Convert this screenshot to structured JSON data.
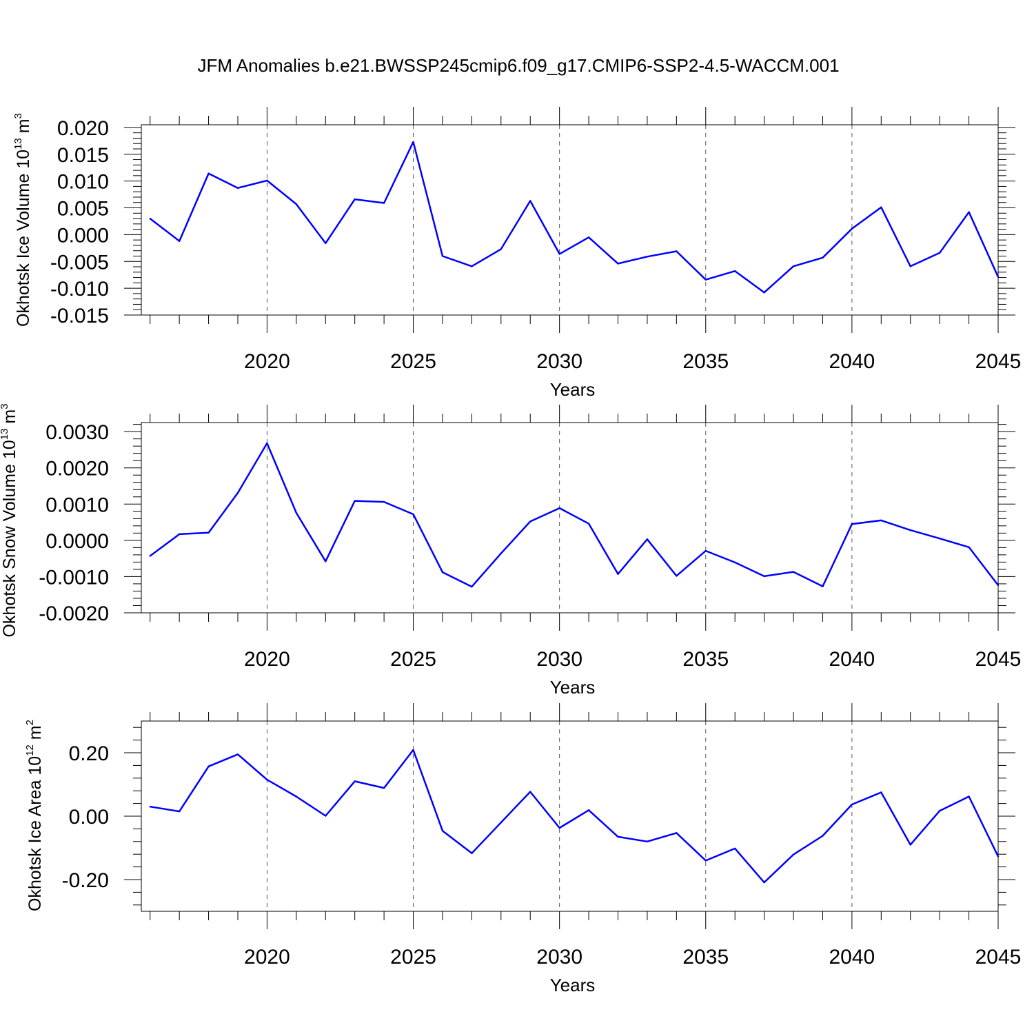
{
  "chart_data": {
    "title": "JFM Anomalies b.e21.BWSSP245cmip6.f09_g17.CMIP6-SSP2-4.5-WACCM.001",
    "color": "#0000ff",
    "panels": [
      {
        "type": "line",
        "ylabel": "Okhotsk Ice Volume 10",
        "ylabel_exp": "13",
        "ylabel_unit": " m",
        "ylabel_unit_exp": "3",
        "xlabel": "Years",
        "xlim": [
          2015.7,
          2045
        ],
        "ylim": [
          -0.015,
          0.0205
        ],
        "yticks": [
          -0.015,
          -0.01,
          -0.005,
          0.0,
          0.005,
          0.01,
          0.015,
          0.02
        ],
        "ytick_labels": [
          "-0.015",
          "-0.010",
          "-0.005",
          "0.000",
          "0.005",
          "0.010",
          "0.015",
          "0.020"
        ],
        "xticks": [
          2020,
          2025,
          2030,
          2035,
          2040,
          2045
        ],
        "xtick_labels": [
          "2020",
          "2025",
          "2030",
          "2035",
          "2040",
          "2045"
        ],
        "x": [
          2016,
          2017,
          2018,
          2019,
          2020,
          2021,
          2022,
          2023,
          2024,
          2025,
          2026,
          2027,
          2028,
          2029,
          2030,
          2031,
          2032,
          2033,
          2034,
          2035,
          2036,
          2037,
          2038,
          2039,
          2040,
          2041,
          2042,
          2043,
          2044,
          2045
        ],
        "y": [
          0.003,
          -0.0012,
          0.0114,
          0.0087,
          0.0101,
          0.0057,
          -0.0016,
          0.0066,
          0.0059,
          0.0173,
          -0.004,
          -0.0059,
          -0.0027,
          0.0063,
          -0.0036,
          -0.0005,
          -0.0054,
          -0.0041,
          -0.0031,
          -0.0084,
          -0.0068,
          -0.0108,
          -0.0059,
          -0.0043,
          0.0011,
          0.0051,
          -0.0059,
          -0.0034,
          0.0042,
          -0.0079
        ]
      },
      {
        "type": "line",
        "ylabel": "Okhotsk Snow Volume 10",
        "ylabel_exp": "13",
        "ylabel_unit": " m",
        "ylabel_unit_exp": "3",
        "xlabel": "Years",
        "xlim": [
          2015.7,
          2045
        ],
        "ylim": [
          -0.002,
          0.00325
        ],
        "yticks": [
          -0.002,
          -0.001,
          0.0,
          0.001,
          0.002,
          0.003
        ],
        "ytick_labels": [
          "-0.0020",
          "-0.0010",
          "0.0000",
          "0.0010",
          "0.0020",
          "0.0030"
        ],
        "xticks": [
          2020,
          2025,
          2030,
          2035,
          2040,
          2045
        ],
        "xtick_labels": [
          "2020",
          "2025",
          "2030",
          "2035",
          "2040",
          "2045"
        ],
        "x": [
          2016,
          2017,
          2018,
          2019,
          2020,
          2021,
          2022,
          2023,
          2024,
          2025,
          2026,
          2027,
          2028,
          2029,
          2030,
          2031,
          2032,
          2033,
          2034,
          2035,
          2036,
          2037,
          2038,
          2039,
          2040,
          2041,
          2042,
          2043,
          2044,
          2045
        ],
        "y": [
          -0.00043,
          0.00017,
          0.00021,
          0.00131,
          0.00268,
          0.00076,
          -0.00058,
          0.00109,
          0.00106,
          0.00072,
          -0.00088,
          -0.00128,
          -0.00036,
          0.00052,
          0.00089,
          0.00046,
          -0.00093,
          3e-05,
          -0.00098,
          -0.00029,
          -0.00061,
          -0.00099,
          -0.00087,
          -0.00127,
          0.00045,
          0.00055,
          0.00028,
          5e-05,
          -0.00019,
          -0.00124
        ]
      },
      {
        "type": "line",
        "ylabel": "Okhotsk Ice Area 10",
        "ylabel_exp": "12",
        "ylabel_unit": " m",
        "ylabel_unit_exp": "2",
        "xlabel": "Years",
        "xlim": [
          2015.7,
          2045
        ],
        "ylim": [
          -0.3,
          0.3
        ],
        "yticks": [
          -0.2,
          0.0,
          0.2
        ],
        "ytick_labels": [
          "-0.20",
          "0.00",
          "0.20"
        ],
        "xticks": [
          2020,
          2025,
          2030,
          2035,
          2040,
          2045
        ],
        "xtick_labels": [
          "2020",
          "2025",
          "2030",
          "2035",
          "2040",
          "2045"
        ],
        "x": [
          2016,
          2017,
          2018,
          2019,
          2020,
          2021,
          2022,
          2023,
          2024,
          2025,
          2026,
          2027,
          2028,
          2029,
          2030,
          2031,
          2032,
          2033,
          2034,
          2035,
          2036,
          2037,
          2038,
          2039,
          2040,
          2041,
          2042,
          2043,
          2044,
          2045
        ],
        "y": [
          0.03,
          0.015,
          0.157,
          0.195,
          0.115,
          0.062,
          0.001,
          0.11,
          0.089,
          0.209,
          -0.046,
          -0.117,
          -0.02,
          0.077,
          -0.037,
          0.019,
          -0.065,
          -0.08,
          -0.053,
          -0.14,
          -0.102,
          -0.209,
          -0.121,
          -0.062,
          0.037,
          0.075,
          -0.09,
          0.017,
          0.062,
          -0.127
        ]
      }
    ]
  }
}
